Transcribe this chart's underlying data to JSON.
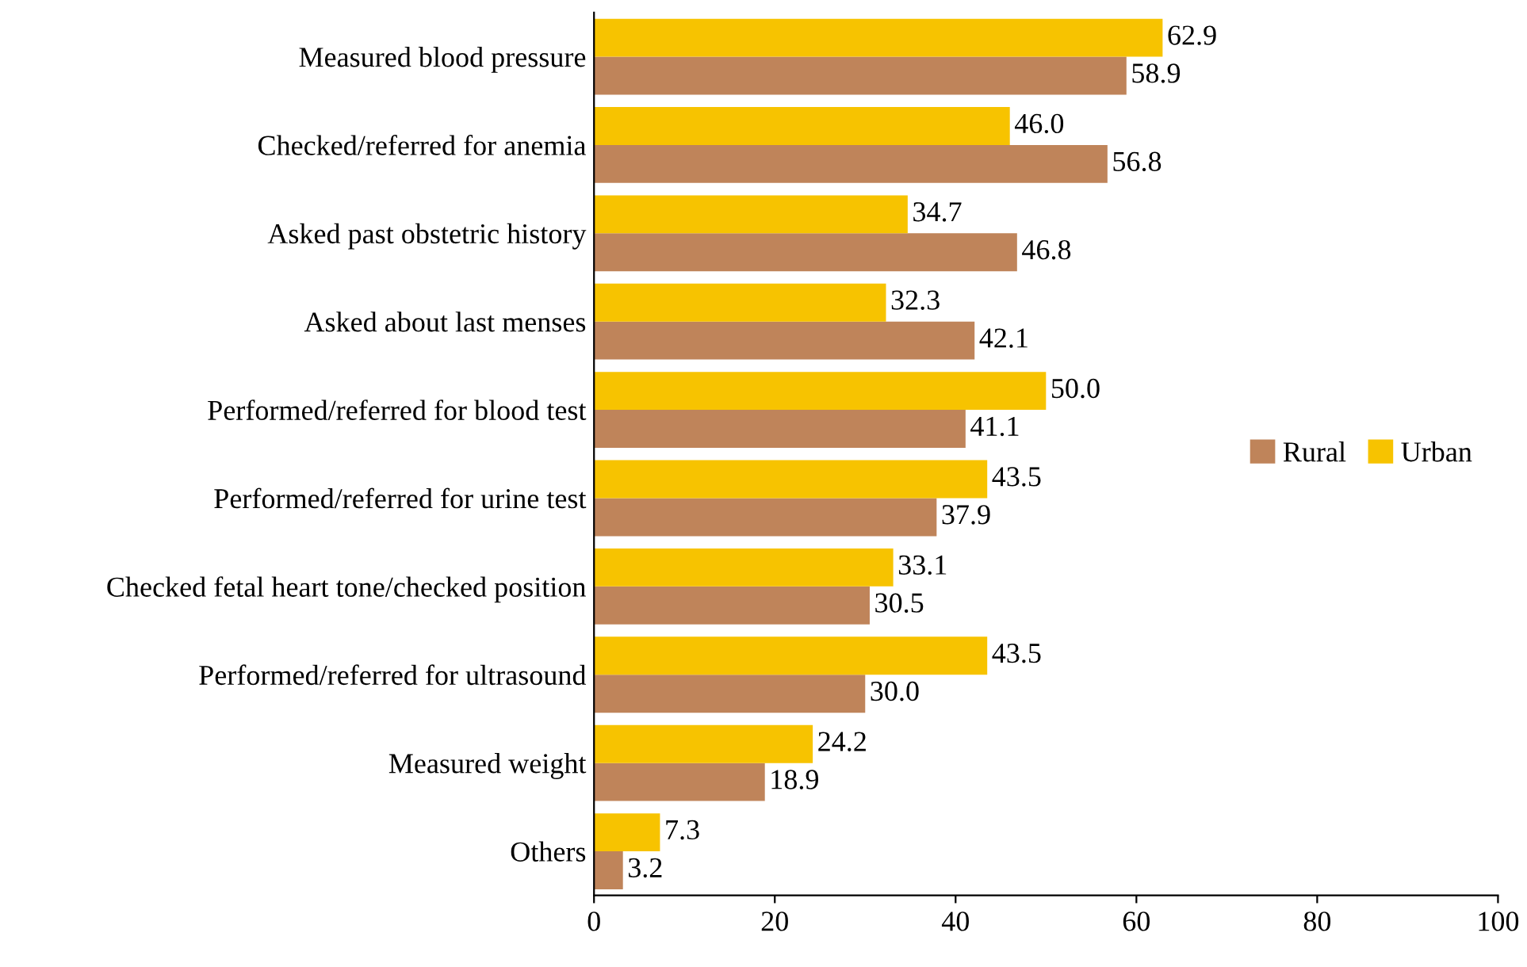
{
  "chart_data": {
    "type": "bar",
    "orientation": "horizontal",
    "categories": [
      "Measured blood pressure",
      "Checked/referred for anemia",
      "Asked past obstetric history",
      "Asked about last menses",
      "Performed/referred for blood test",
      "Performed/referred for urine test",
      "Checked fetal heart tone/checked position",
      "Performed/referred for ultrasound",
      "Measured weight",
      "Others"
    ],
    "series": [
      {
        "name": "Rural",
        "color": "#bf845a",
        "values": [
          58.9,
          56.8,
          46.8,
          42.1,
          41.1,
          37.9,
          30.5,
          30.0,
          18.9,
          3.2
        ],
        "value_labels": [
          "58.9",
          "56.8",
          "46.8",
          "42.1",
          "41.1",
          "37.9",
          "30.5",
          "30.0",
          "18.9",
          "3.2"
        ]
      },
      {
        "name": "Urban",
        "color": "#f7c300",
        "values": [
          62.9,
          46.0,
          34.7,
          32.3,
          50.0,
          43.5,
          33.1,
          43.5,
          24.2,
          7.3
        ],
        "value_labels": [
          "62.9",
          "46.0",
          "34.7",
          "32.3",
          "50.0",
          "43.5",
          "33.1",
          "43.5",
          "24.2",
          "7.3"
        ]
      }
    ],
    "xlim": [
      0,
      100
    ],
    "xticks": [
      0,
      20,
      40,
      60,
      80,
      100
    ],
    "grid": false,
    "legend": "right"
  }
}
